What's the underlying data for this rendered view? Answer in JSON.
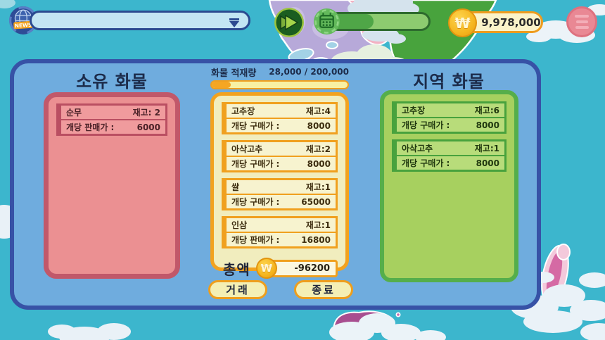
{
  "top_bar": {
    "news_label": "NEWS",
    "ticker_text": "",
    "currency_symbol": "₩",
    "money": "9,978,000",
    "date_progress_pct": 44
  },
  "panel": {
    "owned": {
      "title": "소유 화물",
      "items": [
        {
          "name": "순무",
          "stock": "재고: 2",
          "price_label": "개당 판매가 :",
          "price": "6000"
        }
      ]
    },
    "cargo": {
      "capacity_label": "화물 적재량",
      "capacity_value": "28,000 / 200,000",
      "capacity_pct": 14,
      "items": [
        {
          "name": "고추장",
          "stock": "재고:4",
          "price_label": "개당 구매가 :",
          "price": "8000"
        },
        {
          "name": "아삭고추",
          "stock": "재고:2",
          "price_label": "개당 구매가 :",
          "price": "8000"
        },
        {
          "name": "쌀",
          "stock": "재고:1",
          "price_label": "개당 구매가 :",
          "price": "65000"
        },
        {
          "name": "인삼",
          "stock": "재고:1",
          "price_label": "개당 판매가 :",
          "price": "16800"
        }
      ],
      "total_label": "총액",
      "total_value": "-96200"
    },
    "regional": {
      "title": "지역 화물",
      "items": [
        {
          "name": "고추장",
          "stock": "재고:6",
          "price_label": "개당 구매가 :",
          "price": "8000"
        },
        {
          "name": "아삭고추",
          "stock": "재고:1",
          "price_label": "개당 구매가 :",
          "price": "8000"
        }
      ]
    },
    "buttons": {
      "trade": "거래",
      "end": "종료"
    }
  },
  "colors": {
    "sky": "#3cb6cd",
    "panel_blue": "#6facde",
    "panel_border": "#3752a6",
    "owned_red": "#eb9092",
    "cargo_yellow": "#f1edbe",
    "regional_green": "#a7d05f",
    "accent_orange": "#f0a01f",
    "coin_gold": "#f5b51e"
  }
}
